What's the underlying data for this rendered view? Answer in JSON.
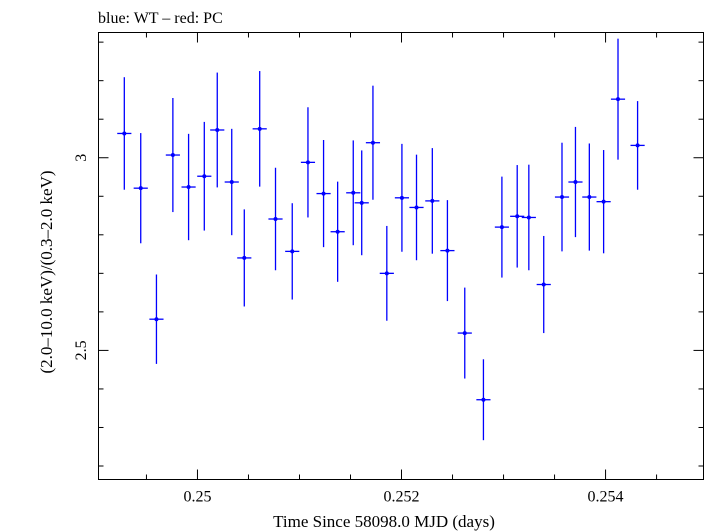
{
  "chart_data": {
    "type": "scatter",
    "title": "blue: WT – red: PC",
    "xlabel": "Time Since 58098.0 MJD (days)",
    "ylabel": "(2.0–10.0 keV)/(0.3–2.0 keV)",
    "xlim": [
      0.24903,
      0.25496
    ],
    "ylim": [
      2.165,
      3.325
    ],
    "x_ticks": [
      0.25,
      0.252,
      0.254
    ],
    "x_tick_labels": [
      "0.25",
      "0.252",
      "0.254"
    ],
    "y_ticks": [
      2.5,
      3.0
    ],
    "y_tick_labels": [
      "2.5",
      "3"
    ],
    "grid": false,
    "series": [
      {
        "color": "#0000ff",
        "x_halfwidth": 6.94e-05,
        "points": [
          {
            "x": 0.249283,
            "y": 3.063,
            "err": 0.146
          },
          {
            "x": 0.249444,
            "y": 2.921,
            "err": 0.143
          },
          {
            "x": 0.249598,
            "y": 2.581,
            "err": 0.116
          },
          {
            "x": 0.249759,
            "y": 3.007,
            "err": 0.148
          },
          {
            "x": 0.249913,
            "y": 2.924,
            "err": 0.138
          },
          {
            "x": 0.250067,
            "y": 2.952,
            "err": 0.141
          },
          {
            "x": 0.250194,
            "y": 3.072,
            "err": 0.149
          },
          {
            "x": 0.250336,
            "y": 2.937,
            "err": 0.138
          },
          {
            "x": 0.250459,
            "y": 2.74,
            "err": 0.126
          },
          {
            "x": 0.25061,
            "y": 3.075,
            "err": 0.15
          },
          {
            "x": 0.250765,
            "y": 2.841,
            "err": 0.133
          },
          {
            "x": 0.250929,
            "y": 2.757,
            "err": 0.125
          },
          {
            "x": 0.251083,
            "y": 2.988,
            "err": 0.143
          },
          {
            "x": 0.251236,
            "y": 2.907,
            "err": 0.139
          },
          {
            "x": 0.251374,
            "y": 2.808,
            "err": 0.13
          },
          {
            "x": 0.251527,
            "y": 2.909,
            "err": 0.136
          },
          {
            "x": 0.25161,
            "y": 2.883,
            "err": 0.136
          },
          {
            "x": 0.25172,
            "y": 3.039,
            "err": 0.148
          },
          {
            "x": 0.251856,
            "y": 2.7,
            "err": 0.123
          },
          {
            "x": 0.252004,
            "y": 2.896,
            "err": 0.14
          },
          {
            "x": 0.252147,
            "y": 2.871,
            "err": 0.137
          },
          {
            "x": 0.252302,
            "y": 2.888,
            "err": 0.137
          },
          {
            "x": 0.25245,
            "y": 2.759,
            "err": 0.131
          },
          {
            "x": 0.25262,
            "y": 2.545,
            "err": 0.118
          },
          {
            "x": 0.252803,
            "y": 2.372,
            "err": 0.105
          },
          {
            "x": 0.252984,
            "y": 2.82,
            "err": 0.131
          },
          {
            "x": 0.253134,
            "y": 2.848,
            "err": 0.133
          },
          {
            "x": 0.253248,
            "y": 2.845,
            "err": 0.137
          },
          {
            "x": 0.253394,
            "y": 2.671,
            "err": 0.126
          },
          {
            "x": 0.253573,
            "y": 2.898,
            "err": 0.141
          },
          {
            "x": 0.253705,
            "y": 2.937,
            "err": 0.143
          },
          {
            "x": 0.253841,
            "y": 2.898,
            "err": 0.139
          },
          {
            "x": 0.253981,
            "y": 2.886,
            "err": 0.134
          },
          {
            "x": 0.254122,
            "y": 3.152,
            "err": 0.157
          },
          {
            "x": 0.254314,
            "y": 3.032,
            "err": 0.115
          }
        ]
      }
    ]
  }
}
